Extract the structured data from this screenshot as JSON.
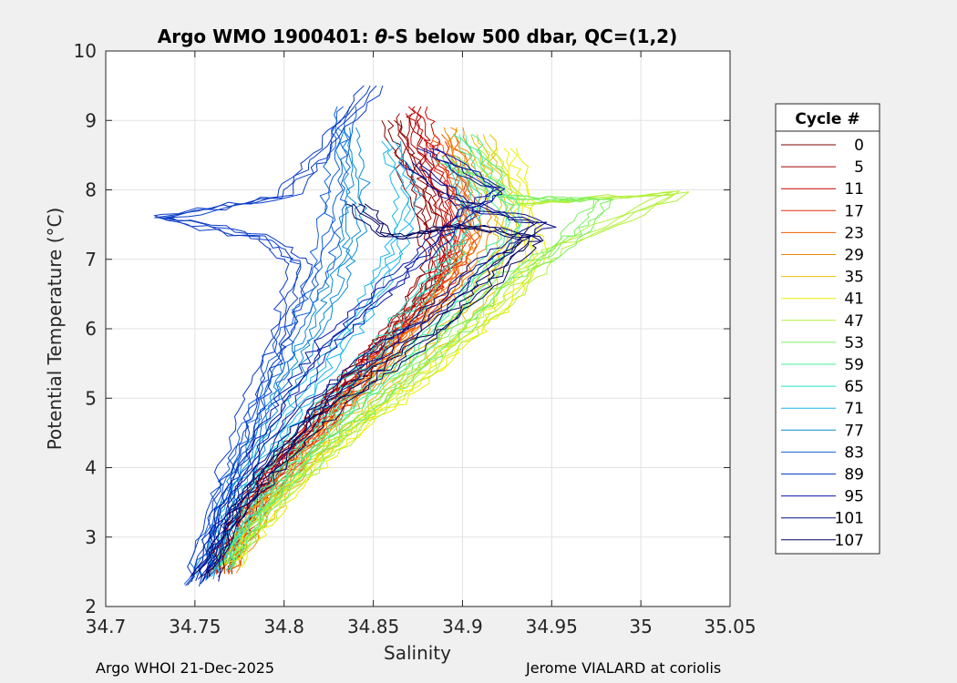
{
  "footer": {
    "left": "Argo WHOI 21-Dec-2025",
    "right": "Jerome VIALARD at coriolis"
  },
  "chart_data": {
    "type": "line",
    "title_prefix": "Argo WMO 1900401: ",
    "title_theta": "θ",
    "title_suffix": "-S below 500 dbar,  QC=(1,2)",
    "xlabel": "Salinity",
    "ylabel": "Potential Temperature (°C)",
    "xlim": [
      34.7,
      35.05
    ],
    "ylim": [
      2,
      10
    ],
    "xticks": [
      34.7,
      34.75,
      34.8,
      34.85,
      34.9,
      34.95,
      35,
      35.05
    ],
    "xtick_labels": [
      "34.7",
      "34.75",
      "34.8",
      "34.85",
      "34.9",
      "34.95",
      "35",
      "35.05"
    ],
    "yticks": [
      2,
      3,
      4,
      5,
      6,
      7,
      8,
      9,
      10
    ],
    "ytick_labels": [
      "2",
      "3",
      "4",
      "5",
      "6",
      "7",
      "8",
      "9",
      "10"
    ],
    "grid": true,
    "legend": {
      "title": "Cycle #",
      "placement": "right",
      "entries": [
        {
          "label": "0",
          "color": "#800000"
        },
        {
          "label": "5",
          "color": "#a30000"
        },
        {
          "label": "11",
          "color": "#c80000"
        },
        {
          "label": "17",
          "color": "#e82a10"
        },
        {
          "label": "23",
          "color": "#f25a00"
        },
        {
          "label": "29",
          "color": "#f08a00"
        },
        {
          "label": "35",
          "color": "#e6c000"
        },
        {
          "label": "41",
          "color": "#ecf000"
        },
        {
          "label": "47",
          "color": "#b4f03a"
        },
        {
          "label": "53",
          "color": "#7cf05e"
        },
        {
          "label": "59",
          "color": "#45f09a"
        },
        {
          "label": "65",
          "color": "#22e3c8"
        },
        {
          "label": "71",
          "color": "#18b6e8"
        },
        {
          "label": "77",
          "color": "#0a8ad6"
        },
        {
          "label": "83",
          "color": "#1060d8"
        },
        {
          "label": "89",
          "color": "#0a3cc8"
        },
        {
          "label": "95",
          "color": "#0818a8"
        },
        {
          "label": "101",
          "color": "#060c8a"
        },
        {
          "label": "107",
          "color": "#03035f"
        }
      ]
    },
    "profiles_note": "approx per-cycle curve: (S, theta) from ~2.4C to top",
    "series": [
      {
        "name": "0",
        "points": [
          [
            34.762,
            2.45
          ],
          [
            34.775,
            3.3
          ],
          [
            34.79,
            3.9
          ],
          [
            34.81,
            4.5
          ],
          [
            34.83,
            5.1
          ],
          [
            34.85,
            5.6
          ],
          [
            34.87,
            6.2
          ],
          [
            34.885,
            6.8
          ],
          [
            34.88,
            7.5
          ],
          [
            34.87,
            8.3
          ],
          [
            34.86,
            9.0
          ]
        ]
      },
      {
        "name": "5",
        "points": [
          [
            34.763,
            2.5
          ],
          [
            34.777,
            3.3
          ],
          [
            34.795,
            4.0
          ],
          [
            34.815,
            4.6
          ],
          [
            34.835,
            5.2
          ],
          [
            34.855,
            5.8
          ],
          [
            34.875,
            6.4
          ],
          [
            34.89,
            7.0
          ],
          [
            34.885,
            7.7
          ],
          [
            34.875,
            8.4
          ],
          [
            34.87,
            9.1
          ]
        ]
      },
      {
        "name": "11",
        "points": [
          [
            34.764,
            2.5
          ],
          [
            34.78,
            3.4
          ],
          [
            34.8,
            4.1
          ],
          [
            34.82,
            4.7
          ],
          [
            34.84,
            5.3
          ],
          [
            34.86,
            5.9
          ],
          [
            34.88,
            6.5
          ],
          [
            34.895,
            7.1
          ],
          [
            34.89,
            7.9
          ],
          [
            34.88,
            8.6
          ],
          [
            34.875,
            9.2
          ]
        ]
      },
      {
        "name": "17",
        "points": [
          [
            34.765,
            2.5
          ],
          [
            34.782,
            3.3
          ],
          [
            34.803,
            4.0
          ],
          [
            34.825,
            4.7
          ],
          [
            34.845,
            5.3
          ],
          [
            34.865,
            5.9
          ],
          [
            34.885,
            6.5
          ],
          [
            34.9,
            7.2
          ],
          [
            34.895,
            8.0
          ],
          [
            34.885,
            8.7
          ]
        ]
      },
      {
        "name": "23",
        "points": [
          [
            34.766,
            2.5
          ],
          [
            34.785,
            3.4
          ],
          [
            34.806,
            4.1
          ],
          [
            34.828,
            4.8
          ],
          [
            34.85,
            5.4
          ],
          [
            34.872,
            6.0
          ],
          [
            34.892,
            6.6
          ],
          [
            34.905,
            7.3
          ],
          [
            34.9,
            8.1
          ],
          [
            34.89,
            8.8
          ]
        ]
      },
      {
        "name": "29",
        "points": [
          [
            34.767,
            2.5
          ],
          [
            34.788,
            3.4
          ],
          [
            34.81,
            4.1
          ],
          [
            34.832,
            4.8
          ],
          [
            34.855,
            5.4
          ],
          [
            34.878,
            6.1
          ],
          [
            34.898,
            6.8
          ],
          [
            34.91,
            7.4
          ],
          [
            34.905,
            8.2
          ],
          [
            34.895,
            8.9
          ]
        ]
      },
      {
        "name": "35",
        "points": [
          [
            34.768,
            2.6
          ],
          [
            34.79,
            3.4
          ],
          [
            34.815,
            4.1
          ],
          [
            34.84,
            4.7
          ],
          [
            34.865,
            5.3
          ],
          [
            34.89,
            5.9
          ],
          [
            34.91,
            6.5
          ],
          [
            34.925,
            7.2
          ],
          [
            34.92,
            8.0
          ],
          [
            34.91,
            8.8
          ]
        ]
      },
      {
        "name": "41",
        "points": [
          [
            34.769,
            2.6
          ],
          [
            34.795,
            3.4
          ],
          [
            34.82,
            4.1
          ],
          [
            34.848,
            4.7
          ],
          [
            34.875,
            5.2
          ],
          [
            34.9,
            5.8
          ],
          [
            34.925,
            6.4
          ],
          [
            34.94,
            7.0
          ],
          [
            34.935,
            7.8
          ],
          [
            34.925,
            8.6
          ]
        ]
      },
      {
        "name": "47",
        "points": [
          [
            34.77,
            2.6
          ],
          [
            34.795,
            3.5
          ],
          [
            34.822,
            4.2
          ],
          [
            34.85,
            4.8
          ],
          [
            34.878,
            5.4
          ],
          [
            34.905,
            6.0
          ],
          [
            34.93,
            6.6
          ],
          [
            34.955,
            7.2
          ],
          [
            35.02,
            7.95
          ],
          [
            34.93,
            7.8
          ],
          [
            34.91,
            8.6
          ]
        ]
      },
      {
        "name": "53",
        "points": [
          [
            34.768,
            2.6
          ],
          [
            34.792,
            3.5
          ],
          [
            34.818,
            4.2
          ],
          [
            34.845,
            4.8
          ],
          [
            34.872,
            5.4
          ],
          [
            34.898,
            6.0
          ],
          [
            34.925,
            6.7
          ],
          [
            34.96,
            7.3
          ],
          [
            34.98,
            7.85
          ],
          [
            34.92,
            7.9
          ],
          [
            34.89,
            8.5
          ]
        ]
      },
      {
        "name": "59",
        "points": [
          [
            34.766,
            2.55
          ],
          [
            34.788,
            3.5
          ],
          [
            34.812,
            4.2
          ],
          [
            34.838,
            4.9
          ],
          [
            34.865,
            5.5
          ],
          [
            34.89,
            6.1
          ],
          [
            34.912,
            6.8
          ],
          [
            34.93,
            7.5
          ],
          [
            34.915,
            8.2
          ],
          [
            34.9,
            8.8
          ]
        ]
      },
      {
        "name": "65",
        "points": [
          [
            34.762,
            2.5
          ],
          [
            34.78,
            3.5
          ],
          [
            34.802,
            4.3
          ],
          [
            34.826,
            5.0
          ],
          [
            34.85,
            5.6
          ],
          [
            34.872,
            6.3
          ],
          [
            34.892,
            7.0
          ],
          [
            34.905,
            7.7
          ],
          [
            34.895,
            8.4
          ]
        ]
      },
      {
        "name": "71",
        "points": [
          [
            34.758,
            2.45
          ],
          [
            34.772,
            3.5
          ],
          [
            34.792,
            4.3
          ],
          [
            34.81,
            5.0
          ],
          [
            34.83,
            5.7
          ],
          [
            34.848,
            6.4
          ],
          [
            34.862,
            7.1
          ],
          [
            34.87,
            7.9
          ],
          [
            34.86,
            8.7
          ]
        ]
      },
      {
        "name": "77",
        "points": [
          [
            34.755,
            2.4
          ],
          [
            34.768,
            3.5
          ],
          [
            34.785,
            4.4
          ],
          [
            34.8,
            5.2
          ],
          [
            34.815,
            5.9
          ],
          [
            34.828,
            6.6
          ],
          [
            34.838,
            7.3
          ],
          [
            34.84,
            8.1
          ],
          [
            34.835,
            8.9
          ]
        ]
      },
      {
        "name": "83",
        "points": [
          [
            34.752,
            2.35
          ],
          [
            34.765,
            3.5
          ],
          [
            34.78,
            4.4
          ],
          [
            34.792,
            5.2
          ],
          [
            34.805,
            6.0
          ],
          [
            34.818,
            6.7
          ],
          [
            34.826,
            7.5
          ],
          [
            34.83,
            8.3
          ],
          [
            34.835,
            9.2
          ]
        ]
      },
      {
        "name": "89",
        "points": [
          [
            34.75,
            2.3
          ],
          [
            34.762,
            3.4
          ],
          [
            34.776,
            4.4
          ],
          [
            34.788,
            5.3
          ],
          [
            34.8,
            6.1
          ],
          [
            34.81,
            6.9
          ],
          [
            34.79,
            7.3
          ],
          [
            34.73,
            7.6
          ],
          [
            34.8,
            7.9
          ],
          [
            34.82,
            8.5
          ],
          [
            34.85,
            9.5
          ]
        ]
      },
      {
        "name": "95",
        "points": [
          [
            34.753,
            2.4
          ],
          [
            34.768,
            3.4
          ],
          [
            34.785,
            4.3
          ],
          [
            34.805,
            5.1
          ],
          [
            34.825,
            5.8
          ],
          [
            34.85,
            6.4
          ],
          [
            34.875,
            7.0
          ],
          [
            34.9,
            7.6
          ],
          [
            34.92,
            8.0
          ],
          [
            34.88,
            8.6
          ]
        ]
      },
      {
        "name": "101",
        "points": [
          [
            34.755,
            2.4
          ],
          [
            34.772,
            3.4
          ],
          [
            34.795,
            4.2
          ],
          [
            34.82,
            5.0
          ],
          [
            34.85,
            5.6
          ],
          [
            34.88,
            6.2
          ],
          [
            34.91,
            6.9
          ],
          [
            34.945,
            7.5
          ],
          [
            34.9,
            7.8
          ],
          [
            34.87,
            8.4
          ]
        ]
      },
      {
        "name": "107",
        "points": [
          [
            34.757,
            2.45
          ],
          [
            34.775,
            3.4
          ],
          [
            34.8,
            4.2
          ],
          [
            34.828,
            4.9
          ],
          [
            34.86,
            5.5
          ],
          [
            34.89,
            6.1
          ],
          [
            34.915,
            6.7
          ],
          [
            34.94,
            7.3
          ],
          [
            34.9,
            7.5
          ],
          [
            34.86,
            7.3
          ],
          [
            34.84,
            7.8
          ]
        ]
      }
    ]
  }
}
